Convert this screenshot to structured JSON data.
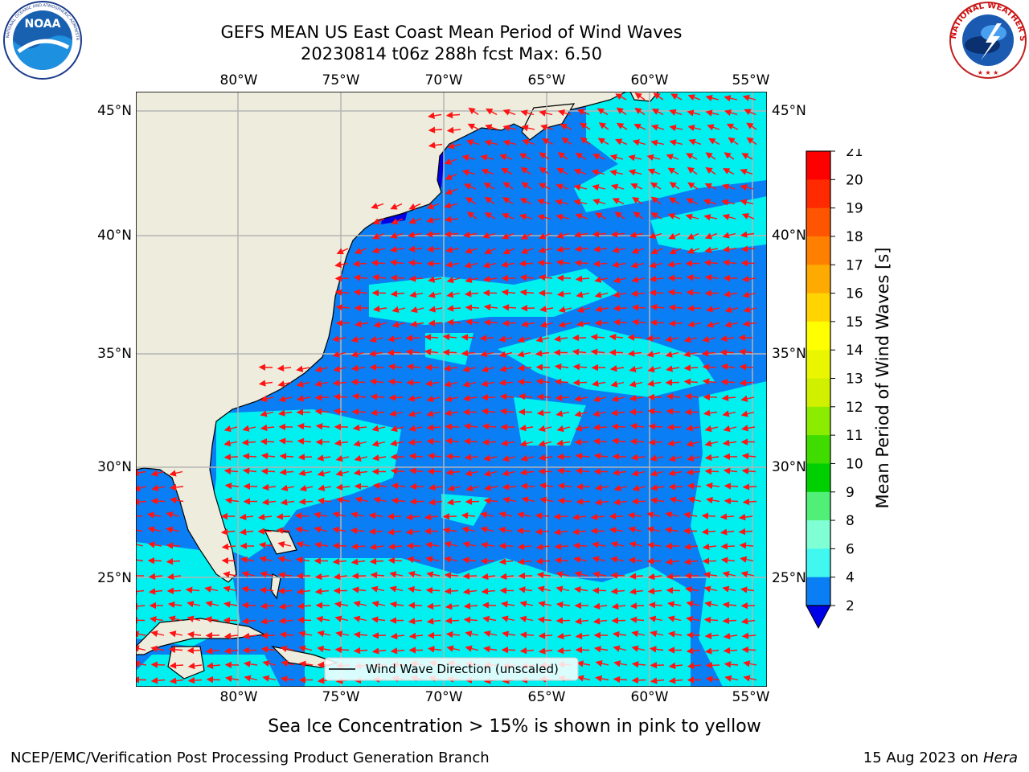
{
  "header": {
    "title_line1": "GEFS MEAN US East Coast Mean Period of Wind Waves",
    "title_line2": "20230814 t06z 288h fcst   Max: 6.50"
  },
  "logos": {
    "left": {
      "icon": "noaa-logo",
      "text_ring": "NATIONAL OCEANIC AND ATMOSPHERIC ADMINISTRATION · U.S. DEPARTMENT OF COMMERCE",
      "center": "NOAA"
    },
    "right": {
      "icon": "nws-logo",
      "text_ring": "NATIONAL WEATHER SERVICE"
    }
  },
  "map": {
    "lon_labels": [
      "80°W",
      "75°W",
      "70°W",
      "65°W",
      "60°W",
      "55°W"
    ],
    "lat_labels": [
      "45°N",
      "40°N",
      "35°N",
      "30°N",
      "25°N"
    ],
    "legend_label": "Wind Wave Direction (unscaled)",
    "colors": {
      "land": "#eeecdc",
      "period_2_4": "#0a7ef4",
      "period_4_6": "#00f0f0",
      "period_below_2": "#0000e6",
      "arrows": "#ff1414",
      "grid": "#b4b4b4"
    }
  },
  "colorbar": {
    "label": "Mean Period of Wind Waves [s]",
    "ticks": [
      "21",
      "20",
      "19",
      "18",
      "17",
      "16",
      "15",
      "14",
      "13",
      "12",
      "11",
      "10",
      "9",
      "8",
      "6",
      "4",
      "2"
    ],
    "colors": [
      "#ff0000",
      "#ff2a00",
      "#ff5500",
      "#ff7f00",
      "#ffaa00",
      "#ffd400",
      "#ffff00",
      "#eaf600",
      "#d0f000",
      "#8cec00",
      "#40dc00",
      "#00d000",
      "#50f078",
      "#80ffd4",
      "#40f8f0",
      "#00eeee",
      "#0a7ef4",
      "#0000e6"
    ]
  },
  "footer": {
    "subcaption": "Sea Ice Concentration > 15% is shown in pink to yellow",
    "credit_left": "NCEP/EMC/Verification Post Processing Product Generation Branch",
    "credit_right_date": "15 Aug 2023 on",
    "credit_right_host": "Hera"
  }
}
